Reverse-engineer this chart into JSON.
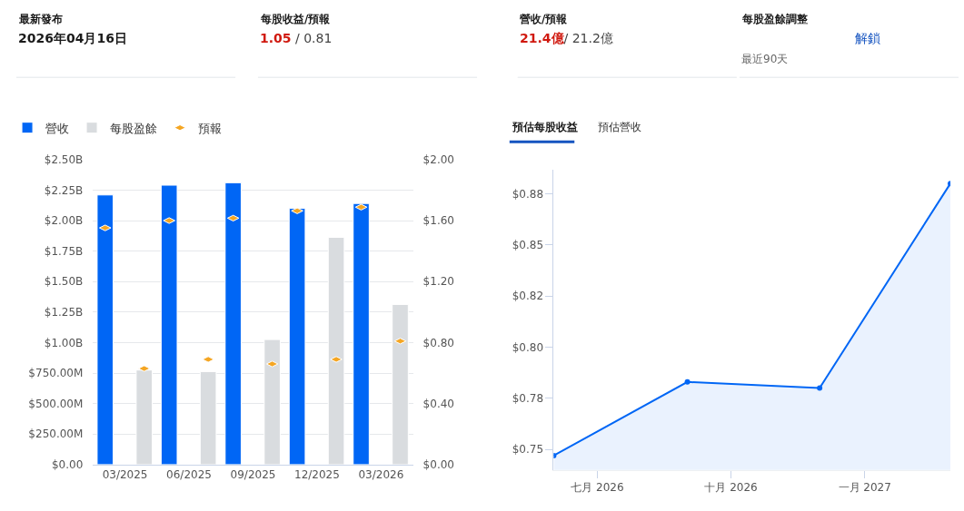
{
  "chart_data": [
    {
      "type": "other",
      "annotations": [
        "最新發布",
        "2026年04月16日",
        "每股收益/預報",
        "1.05 / 0.81",
        "營收/預報",
        "21.4億/ 21.2億",
        "每股盈餘調整",
        "解鎖",
        "最近90天"
      ]
    },
    {
      "type": "bar",
      "categories": [
        "03/2025",
        "06/2025",
        "09/2025",
        "12/2025",
        "03/2026"
      ],
      "series": [
        {
          "name": "營收",
          "color": "#0066f5",
          "values": [
            2210000000,
            2290000000,
            2310000000,
            2100000000,
            2140000000
          ]
        },
        {
          "name": "每股盈餘",
          "color": "#d9dcdf",
          "axis": "y2",
          "values": [
            0.62,
            0.61,
            0.82,
            1.49,
            1.05
          ]
        },
        {
          "name": "預報",
          "type": "scatter",
          "color": "#f5a623",
          "values": [
            1940000000,
            2000000000,
            2020000000,
            2080000000,
            2110000000
          ]
        },
        {
          "type": "scatter",
          "color": "#f5a623",
          "axis": "y2",
          "values": [
            0.63,
            0.69,
            0.66,
            0.69,
            0.81
          ]
        }
      ],
      "ylim": [
        0,
        2500000000
      ],
      "yticks": [
        {
          "value": 0,
          "label": "$0.00"
        },
        {
          "value": 250000000,
          "label": "$250.00M"
        },
        {
          "value": 500000000,
          "label": "$500.00M"
        },
        {
          "value": 750000000,
          "label": "$750.00M"
        },
        {
          "value": 1000000000,
          "label": "$1.00B"
        },
        {
          "value": 1250000000,
          "label": "$1.25B"
        },
        {
          "value": 1500000000,
          "label": "$1.50B"
        },
        {
          "value": 1750000000,
          "label": "$1.75B"
        },
        {
          "value": 2000000000,
          "label": "$2.00B"
        },
        {
          "value": 2250000000,
          "label": "$2.25B"
        },
        {
          "value": 2500000000,
          "label": "$2.50B"
        }
      ],
      "y2lim": [
        0,
        2
      ],
      "y2ticks": [
        {
          "value": 0,
          "label": "$0.00"
        },
        {
          "value": 0.4,
          "label": "$0.40"
        },
        {
          "value": 0.8,
          "label": "$0.80"
        },
        {
          "value": 1.2,
          "label": "$1.20"
        },
        {
          "value": 1.6,
          "label": "$1.60"
        },
        {
          "value": 2,
          "label": "$2.00"
        }
      ],
      "grid": "y",
      "legend": "top left"
    },
    {
      "type": "area",
      "title": "預估每股收益",
      "annotations": [
        "預估營收"
      ],
      "x": [
        "2026-06-01",
        "2026-09-01",
        "2026-12-01",
        "2027-03-01"
      ],
      "series": [
        {
          "color": "#0066f5",
          "values": [
            0.747,
            0.783,
            0.78,
            0.88
          ]
        }
      ],
      "xlim": [
        "2026-06-01",
        "2027-03-01"
      ],
      "xticks": [
        {
          "value": "2026-07-01",
          "label": "七月 2026"
        },
        {
          "value": "2026-10-01",
          "label": "十月 2026"
        },
        {
          "value": "2027-01-01",
          "label": "一月 2027"
        }
      ],
      "ylim": [
        0.74,
        0.8865
      ],
      "yticks": [
        {
          "value": 0.75,
          "label": "$0.75"
        },
        {
          "value": 0.775,
          "label": "$0.78"
        },
        {
          "value": 0.8,
          "label": "$0.80"
        },
        {
          "value": 0.825,
          "label": "$0.82"
        },
        {
          "value": 0.85,
          "label": "$0.85"
        },
        {
          "value": 0.875,
          "label": "$0.88"
        }
      ],
      "marker": "circle",
      "grid": false
    }
  ]
}
